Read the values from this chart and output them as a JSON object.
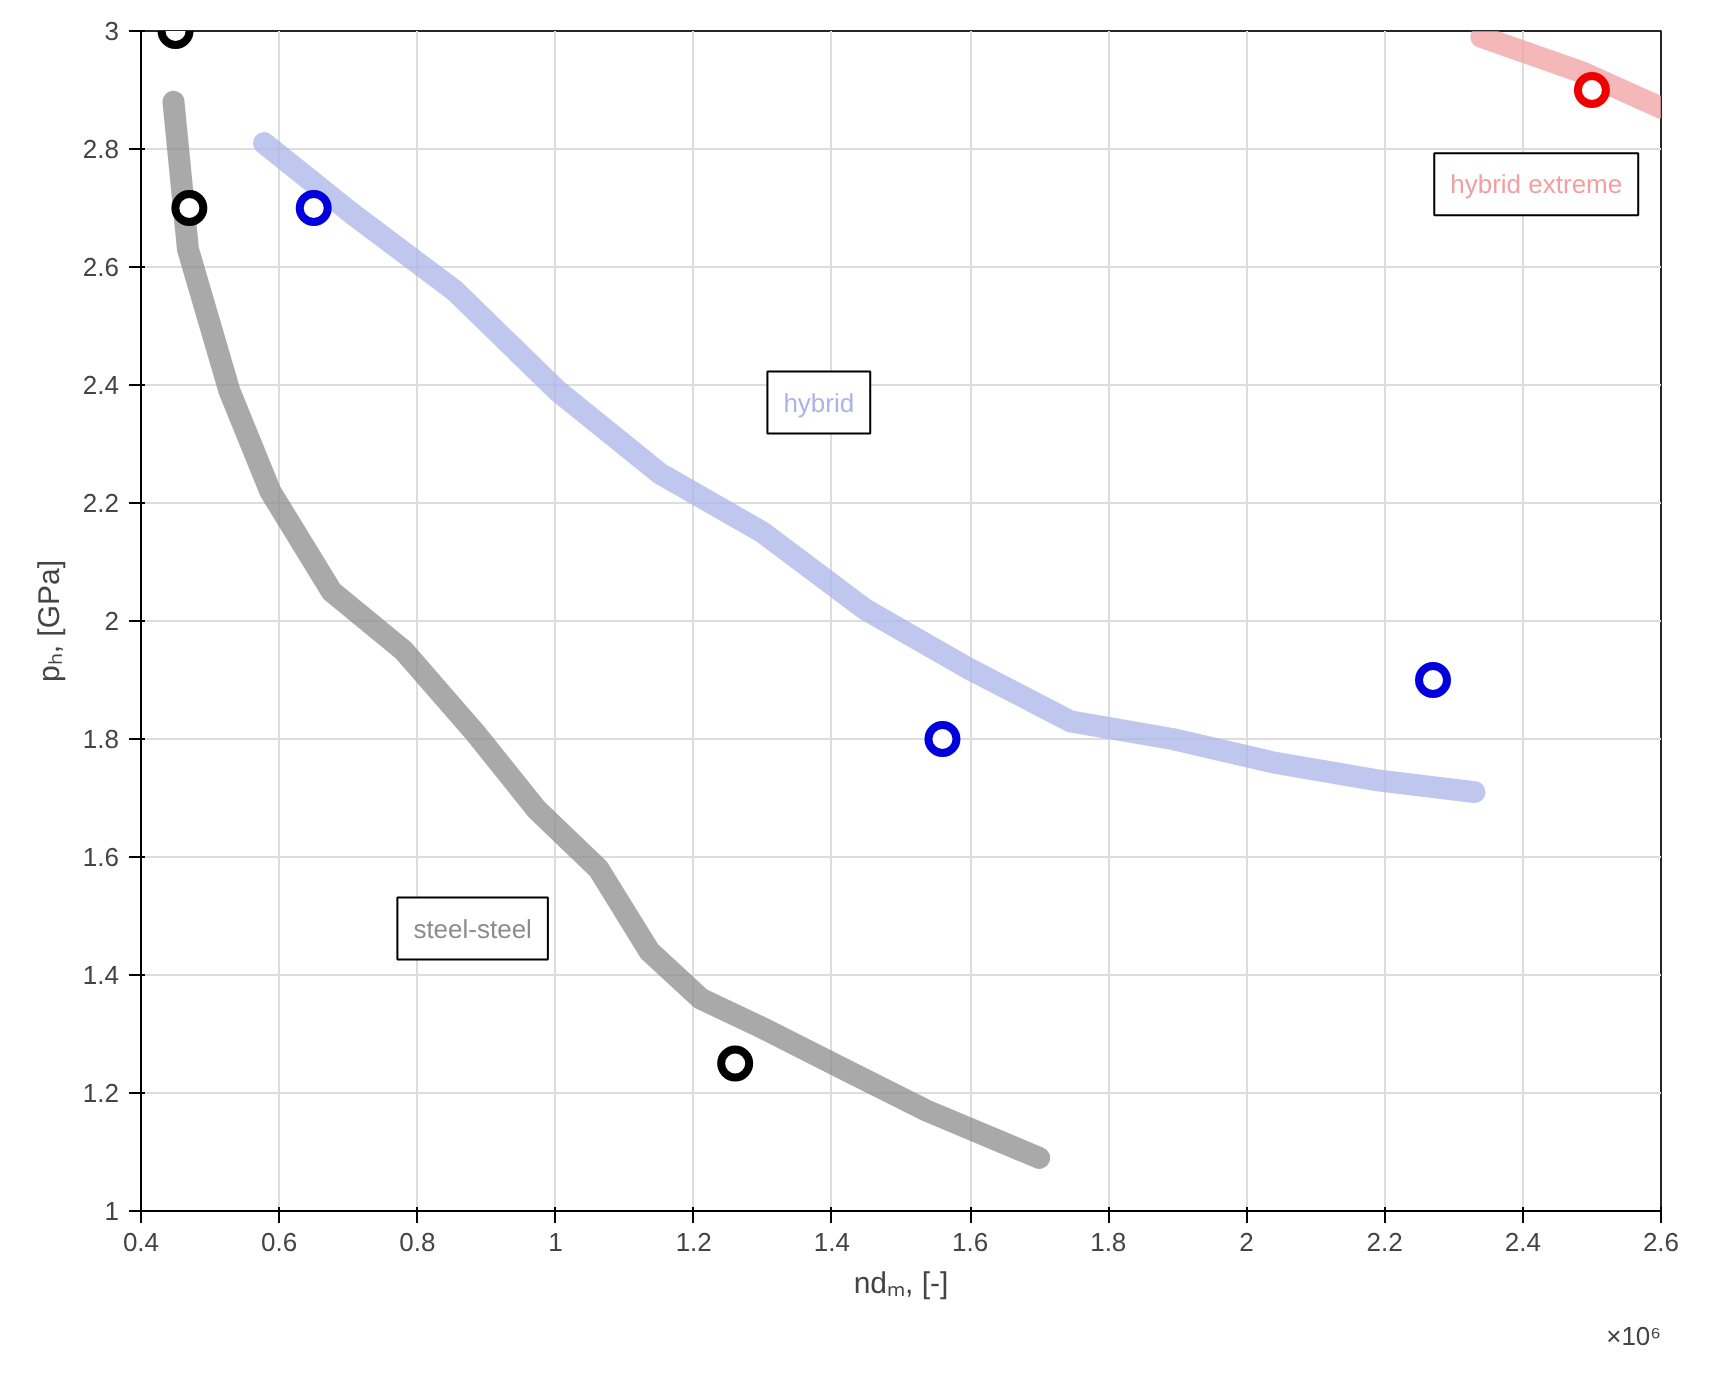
{
  "chart_data": {
    "type": "line",
    "xlabel": "ndₘ, [-]",
    "ylabel": "pₕ, [GPa]",
    "xlim": [
      0.4,
      2.6
    ],
    "ylim": [
      1,
      3
    ],
    "xticks": [
      0.4,
      0.6,
      0.8,
      1,
      1.2,
      1.4,
      1.6,
      1.8,
      2,
      2.2,
      2.4,
      2.6
    ],
    "yticks": [
      1,
      1.2,
      1.4,
      1.6,
      1.8,
      2,
      2.2,
      2.4,
      2.6,
      2.8,
      3
    ],
    "grid": true,
    "series": [
      {
        "name": "steel-steel",
        "color": "#8c8c8c",
        "x": [
          0.447,
          0.468,
          0.528,
          0.587,
          0.676,
          0.78,
          0.884,
          0.973,
          1.062,
          1.136,
          1.21,
          1.3,
          1.418,
          1.537,
          1.7
        ],
        "values": [
          2.88,
          2.63,
          2.39,
          2.22,
          2.05,
          1.95,
          1.81,
          1.68,
          1.58,
          1.44,
          1.36,
          1.31,
          1.24,
          1.17,
          1.09
        ]
      },
      {
        "name": "hybrid",
        "color": "#aab4e8",
        "x": [
          0.578,
          0.706,
          0.854,
          1.003,
          1.151,
          1.3,
          1.448,
          1.597,
          1.745,
          1.893,
          2.04,
          2.19,
          2.33
        ],
        "values": [
          2.81,
          2.69,
          2.56,
          2.39,
          2.25,
          2.15,
          2.02,
          1.92,
          1.83,
          1.8,
          1.76,
          1.73,
          1.71
        ]
      },
      {
        "name": "hybrid extreme",
        "color": "#f0a0a0",
        "x": [
          2.34,
          2.486,
          2.6
        ],
        "values": [
          2.99,
          2.93,
          2.87
        ]
      },
      {
        "type": "scatter",
        "color": "#000000",
        "marker": "circle",
        "x": [
          0.45,
          0.47,
          1.26
        ],
        "values": [
          3.0,
          2.7,
          1.25
        ]
      },
      {
        "type": "scatter",
        "color": "#0000dd",
        "marker": "circle",
        "x": [
          0.65,
          1.56,
          2.27
        ],
        "values": [
          2.7,
          1.8,
          1.9
        ]
      },
      {
        "type": "scatter",
        "color": "#ee0000",
        "marker": "circle",
        "x": [
          2.5
        ],
        "values": [
          2.9
        ]
      }
    ],
    "annotations": [
      "×10⁶"
    ]
  }
}
